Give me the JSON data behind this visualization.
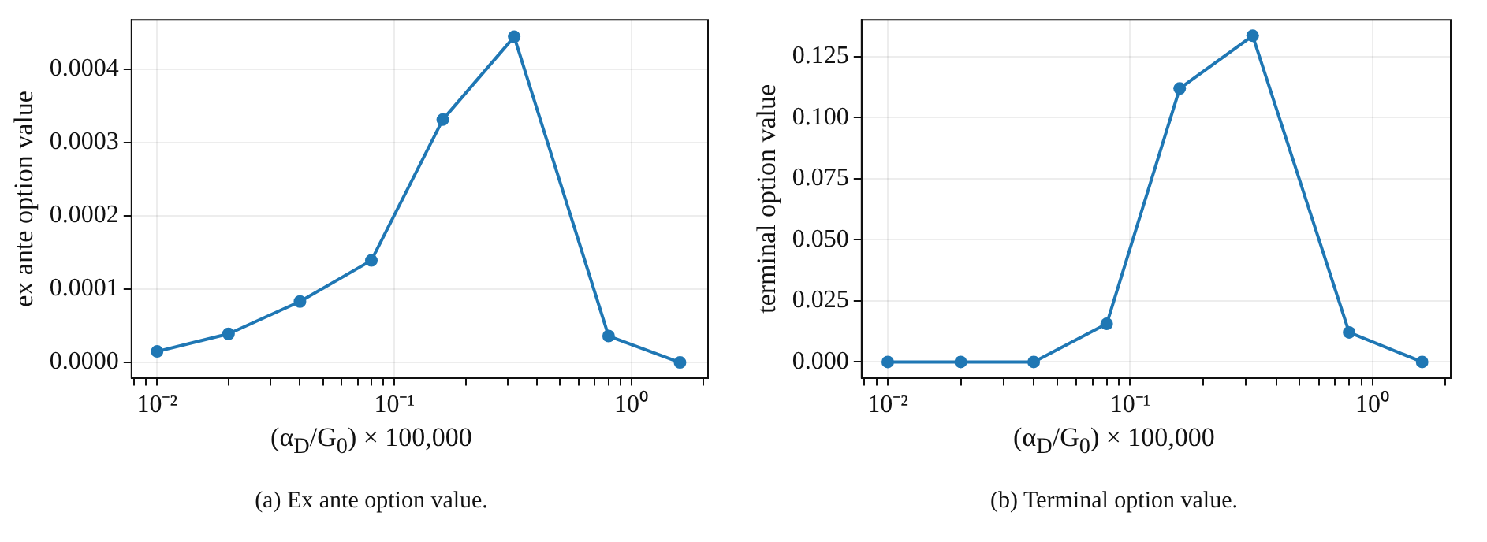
{
  "chart_data": [
    {
      "type": "line",
      "xlabel": "(α$_{D}$/G$_{0}$) × 100,000",
      "ylabel": "ex ante option value",
      "log": "x",
      "grid": true,
      "marker": "circle",
      "line_style": "solid",
      "x": [
        0.01,
        0.02,
        0.04,
        0.08,
        0.16,
        0.32,
        0.8,
        1.6
      ],
      "series": [
        {
          "color": "#1f77b4",
          "values": [
            1.5e-05,
            3.9e-05,
            8.3e-05,
            0.000139,
            0.000331,
            0.000444,
            3.6e-05,
            0.0
          ]
        }
      ],
      "xlim": [
        0.0078,
        2.1
      ],
      "ylim": [
        -2.1e-05,
        0.000467
      ],
      "xticks": [
        {
          "value": 0.008,
          "label": null
        },
        {
          "value": 0.009,
          "label": null
        },
        {
          "value": 0.01,
          "label": "10⁻²"
        },
        {
          "value": 0.02,
          "label": null
        },
        {
          "value": 0.03,
          "label": null
        },
        {
          "value": 0.04,
          "label": null
        },
        {
          "value": 0.05,
          "label": null
        },
        {
          "value": 0.06,
          "label": null
        },
        {
          "value": 0.07,
          "label": null
        },
        {
          "value": 0.08,
          "label": null
        },
        {
          "value": 0.09,
          "label": null
        },
        {
          "value": 0.1,
          "label": "10⁻¹"
        },
        {
          "value": 0.2,
          "label": null
        },
        {
          "value": 0.3,
          "label": null
        },
        {
          "value": 0.4,
          "label": null
        },
        {
          "value": 0.5,
          "label": null
        },
        {
          "value": 0.6,
          "label": null
        },
        {
          "value": 0.7,
          "label": null
        },
        {
          "value": 0.8,
          "label": null
        },
        {
          "value": 0.9,
          "label": null
        },
        {
          "value": 1,
          "label": "10⁰"
        },
        {
          "value": 2,
          "label": null
        }
      ],
      "yticks": [
        {
          "value": 0,
          "label": "0.0000"
        },
        {
          "value": 0.0001,
          "label": "0.0001"
        },
        {
          "value": 0.0002,
          "label": "0.0002"
        },
        {
          "value": 0.0003,
          "label": "0.0003"
        },
        {
          "value": 0.0004,
          "label": "0.0004"
        }
      ],
      "annotations": [
        "(a) Ex ante option value."
      ]
    },
    {
      "type": "line",
      "xlabel": "(α$_{D}$/G$_{0}$) × 100,000",
      "ylabel": "terminal option value",
      "log": "x",
      "grid": true,
      "marker": "circle",
      "line_style": "solid",
      "x": [
        0.01,
        0.02,
        0.04,
        0.08,
        0.16,
        0.32,
        0.8,
        1.6
      ],
      "series": [
        {
          "color": "#1f77b4",
          "values": [
            0.0,
            0.0,
            0.0,
            0.0156,
            0.1119,
            0.1335,
            0.0121,
            0.0
          ]
        }
      ],
      "xlim": [
        0.0078,
        2.1
      ],
      "ylim": [
        -0.0065,
        0.14
      ],
      "xticks": [
        {
          "value": 0.008,
          "label": null
        },
        {
          "value": 0.009,
          "label": null
        },
        {
          "value": 0.01,
          "label": "10⁻²"
        },
        {
          "value": 0.02,
          "label": null
        },
        {
          "value": 0.03,
          "label": null
        },
        {
          "value": 0.04,
          "label": null
        },
        {
          "value": 0.05,
          "label": null
        },
        {
          "value": 0.06,
          "label": null
        },
        {
          "value": 0.07,
          "label": null
        },
        {
          "value": 0.08,
          "label": null
        },
        {
          "value": 0.09,
          "label": null
        },
        {
          "value": 0.1,
          "label": "10⁻¹"
        },
        {
          "value": 0.2,
          "label": null
        },
        {
          "value": 0.3,
          "label": null
        },
        {
          "value": 0.4,
          "label": null
        },
        {
          "value": 0.5,
          "label": null
        },
        {
          "value": 0.6,
          "label": null
        },
        {
          "value": 0.7,
          "label": null
        },
        {
          "value": 0.8,
          "label": null
        },
        {
          "value": 0.9,
          "label": null
        },
        {
          "value": 1,
          "label": "10⁰"
        },
        {
          "value": 2,
          "label": null
        }
      ],
      "yticks": [
        {
          "value": 0,
          "label": "0.000"
        },
        {
          "value": 0.025,
          "label": "0.025"
        },
        {
          "value": 0.05,
          "label": "0.050"
        },
        {
          "value": 0.075,
          "label": "0.075"
        },
        {
          "value": 0.1,
          "label": "0.100"
        },
        {
          "value": 0.125,
          "label": "0.125"
        }
      ],
      "annotations": [
        "(b) Terminal option value."
      ]
    }
  ]
}
